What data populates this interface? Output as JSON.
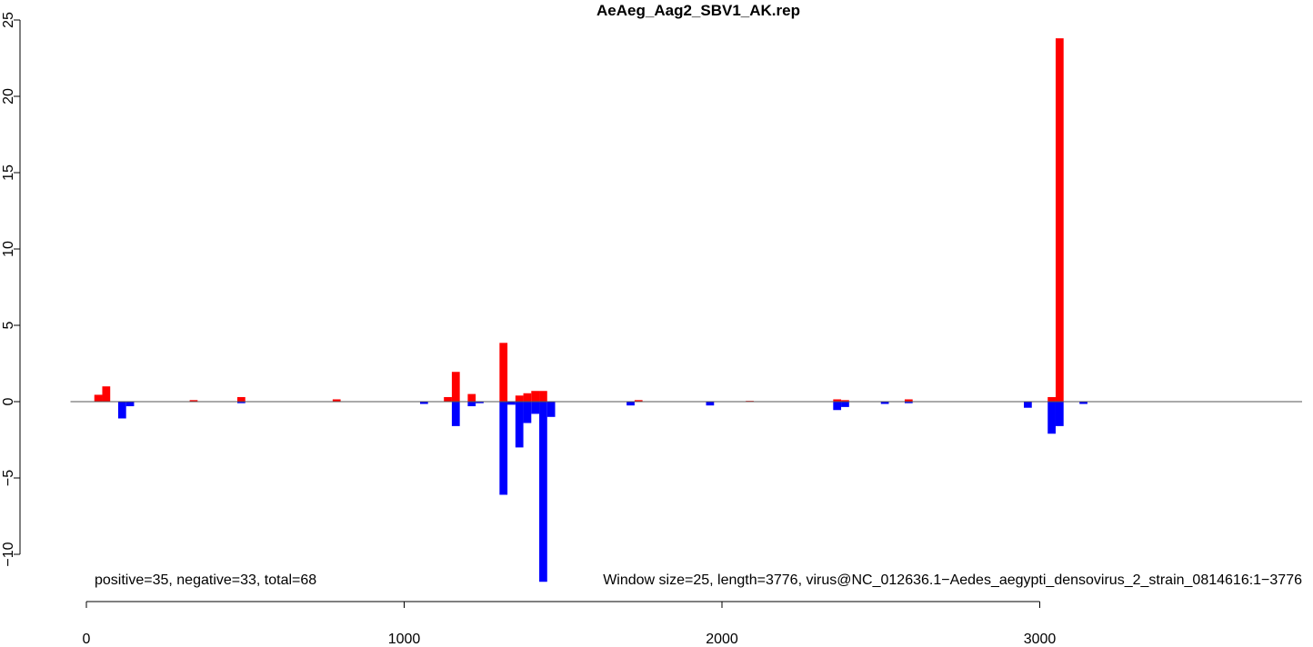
{
  "chart_data": {
    "type": "bar",
    "title": "AeAeg_Aag2_SBV1_AK.rep",
    "xlabel": "",
    "ylabel": "",
    "xlim": [
      -50,
      3776
    ],
    "ylim": [
      -11.8,
      25
    ],
    "x_ticks": [
      0,
      1000,
      2000,
      3000
    ],
    "y_ticks": [
      -10,
      -5,
      0,
      5,
      10,
      15,
      20,
      25
    ],
    "x_tick_labels": [
      "0",
      "1000",
      "2000",
      "3000"
    ],
    "y_tick_labels": [
      "−10",
      "−5",
      "0",
      "5",
      "10",
      "15",
      "20",
      "25"
    ],
    "bin_width": 25,
    "grid": false,
    "series": [
      {
        "color": "#ff0000",
        "points": [
          {
            "x": 25,
            "y": 0.45
          },
          {
            "x": 50,
            "y": 1.0
          },
          {
            "x": 325,
            "y": 0.1
          },
          {
            "x": 475,
            "y": 0.3
          },
          {
            "x": 775,
            "y": 0.15
          },
          {
            "x": 1125,
            "y": 0.3
          },
          {
            "x": 1150,
            "y": 1.95
          },
          {
            "x": 1200,
            "y": 0.5
          },
          {
            "x": 1300,
            "y": 3.85
          },
          {
            "x": 1350,
            "y": 0.4
          },
          {
            "x": 1375,
            "y": 0.55
          },
          {
            "x": 1400,
            "y": 0.7
          },
          {
            "x": 1425,
            "y": 0.7
          },
          {
            "x": 1725,
            "y": 0.1
          },
          {
            "x": 2075,
            "y": 0.05
          },
          {
            "x": 2350,
            "y": 0.15
          },
          {
            "x": 2375,
            "y": 0.1
          },
          {
            "x": 2575,
            "y": 0.15
          },
          {
            "x": 3025,
            "y": 0.3
          },
          {
            "x": 3050,
            "y": 23.8
          }
        ]
      },
      {
        "color": "#0000ff",
        "points": [
          {
            "x": 100,
            "y": -1.1
          },
          {
            "x": 125,
            "y": -0.3
          },
          {
            "x": 475,
            "y": -0.1
          },
          {
            "x": 1050,
            "y": -0.15
          },
          {
            "x": 1150,
            "y": -1.6
          },
          {
            "x": 1200,
            "y": -0.3
          },
          {
            "x": 1225,
            "y": -0.1
          },
          {
            "x": 1300,
            "y": -6.1
          },
          {
            "x": 1325,
            "y": -0.2
          },
          {
            "x": 1350,
            "y": -3.0
          },
          {
            "x": 1375,
            "y": -1.4
          },
          {
            "x": 1400,
            "y": -0.8
          },
          {
            "x": 1425,
            "y": -11.8
          },
          {
            "x": 1450,
            "y": -1.0
          },
          {
            "x": 1700,
            "y": -0.25
          },
          {
            "x": 1950,
            "y": -0.25
          },
          {
            "x": 2350,
            "y": -0.55
          },
          {
            "x": 2375,
            "y": -0.35
          },
          {
            "x": 2500,
            "y": -0.15
          },
          {
            "x": 2575,
            "y": -0.1
          },
          {
            "x": 2950,
            "y": -0.4
          },
          {
            "x": 3025,
            "y": -2.1
          },
          {
            "x": 3050,
            "y": -1.6
          },
          {
            "x": 3125,
            "y": -0.15
          }
        ]
      }
    ],
    "annotations": {
      "left": "positive=35, negative=33, total=68",
      "right": "Window size=25, length=3776, virus@NC_012636.1−Aedes_aegypti_densovirus_2_strain_0814616:1−3776"
    }
  }
}
